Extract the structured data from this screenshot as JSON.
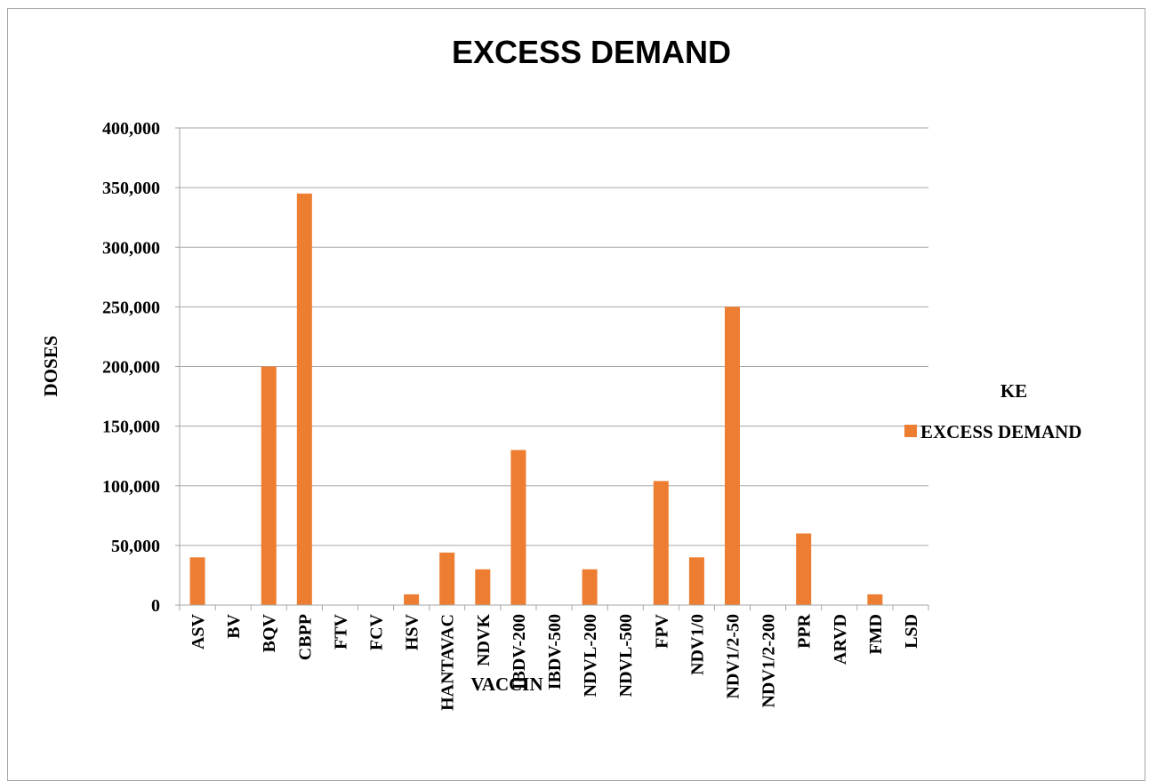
{
  "chart_data": {
    "type": "bar",
    "title": "EXCESS DEMAND",
    "xlabel": "VACCIN",
    "ylabel": "DOSES",
    "ylim": [
      0,
      400000
    ],
    "yticks": [
      0,
      50000,
      100000,
      150000,
      200000,
      250000,
      300000,
      350000,
      400000
    ],
    "ytick_labels": [
      "0",
      "50,000",
      "100,000",
      "150,000",
      "200,000",
      "250,000",
      "300,000",
      "350,000",
      "400,000"
    ],
    "categories": [
      "ASV",
      "BV",
      "BQV",
      "CBPP",
      "FTV",
      "FCV",
      "HSV",
      "HANTAVAC",
      "NDVK",
      "IBDV-200",
      "IBDV-500",
      "NDVL-200",
      "NDVL-500",
      "FPV",
      "NDV1/0",
      "NDV1/2-50",
      "NDV1/2-200",
      "PPR",
      "ARVD",
      "FMD",
      "LSD"
    ],
    "series": [
      {
        "name": "EXCESS DEMAND",
        "color": "#ed7d31",
        "values": [
          40000,
          0,
          200000,
          345000,
          0,
          0,
          9000,
          44000,
          30000,
          130000,
          0,
          30000,
          0,
          104000,
          40000,
          250000,
          0,
          60000,
          0,
          9000,
          0
        ]
      }
    ],
    "legend": {
      "title": "KE",
      "placement": "right"
    },
    "grid": true,
    "gridline_color": "#a6a6a6"
  }
}
